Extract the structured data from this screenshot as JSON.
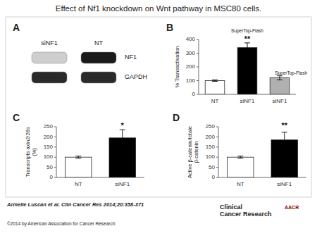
{
  "title": "Effect of Nf1 knockdown on Wnt pathway in MSC80 cells.",
  "annotations": [
    {
      "text": "Armelle Luscan et al. Clin Cancer Res 2014;20:358-371"
    },
    {
      "text": "©2014 by American Association for Cancer Research"
    },
    {
      "text": "Clinical\nCancer Research"
    },
    {
      "text": "AACR",
      "color": "darkred"
    }
  ],
  "chart_data": [
    {
      "type": "blot",
      "title": "A",
      "categories": [
        "siNF1",
        "NT"
      ],
      "series": [
        {
          "name": "NF1",
          "colors": [
            "#cecece",
            "#1a1a1a"
          ]
        },
        {
          "name": "GAPDH",
          "colors": [
            "#2a2a2a",
            "#2a2a2a"
          ]
        }
      ]
    },
    {
      "type": "bar",
      "title": "B",
      "categories": [
        "NT",
        "siNF1",
        "siNF1"
      ],
      "values": [
        100,
        340,
        120
      ],
      "errors": [
        5,
        35,
        15
      ],
      "colors": [
        "white",
        "black",
        "#b0b0b0"
      ],
      "ylabel": "% Transactivation",
      "ylim": [
        0,
        400
      ],
      "yticks": [
        0,
        100,
        200,
        300,
        400
      ],
      "annotations": [
        {
          "text": "SuperTop-Flash",
          "x": 1,
          "y": 400
        },
        {
          "text": "**",
          "x": 1,
          "y": 382
        },
        {
          "text": "SuperTop-Flash",
          "x": 2.35,
          "y": 130
        }
      ]
    },
    {
      "type": "bar",
      "title": "C",
      "categories": [
        "NT",
        "siNF1"
      ],
      "values": [
        100,
        195
      ],
      "errors": [
        5,
        40
      ],
      "colors": [
        "white",
        "black"
      ],
      "ylabel": "Transcripts axin2/26s\n(%)",
      "ylim": [
        0,
        250
      ],
      "yticks": [
        0,
        50,
        100,
        150,
        200,
        250
      ],
      "annotations": [
        {
          "text": "*",
          "x": 1,
          "y": 238
        }
      ]
    },
    {
      "type": "bar",
      "title": "D",
      "categories": [
        "NT",
        "siNF1"
      ],
      "values": [
        100,
        185
      ],
      "errors": [
        5,
        38
      ],
      "colors": [
        "white",
        "black"
      ],
      "ylabel": "Active β-catenin/totale\nβ-catenin",
      "ylim": [
        0,
        250
      ],
      "yticks": [
        0,
        50,
        100,
        150,
        200,
        250
      ],
      "annotations": [
        {
          "text": "**",
          "x": 1,
          "y": 238
        }
      ]
    }
  ]
}
